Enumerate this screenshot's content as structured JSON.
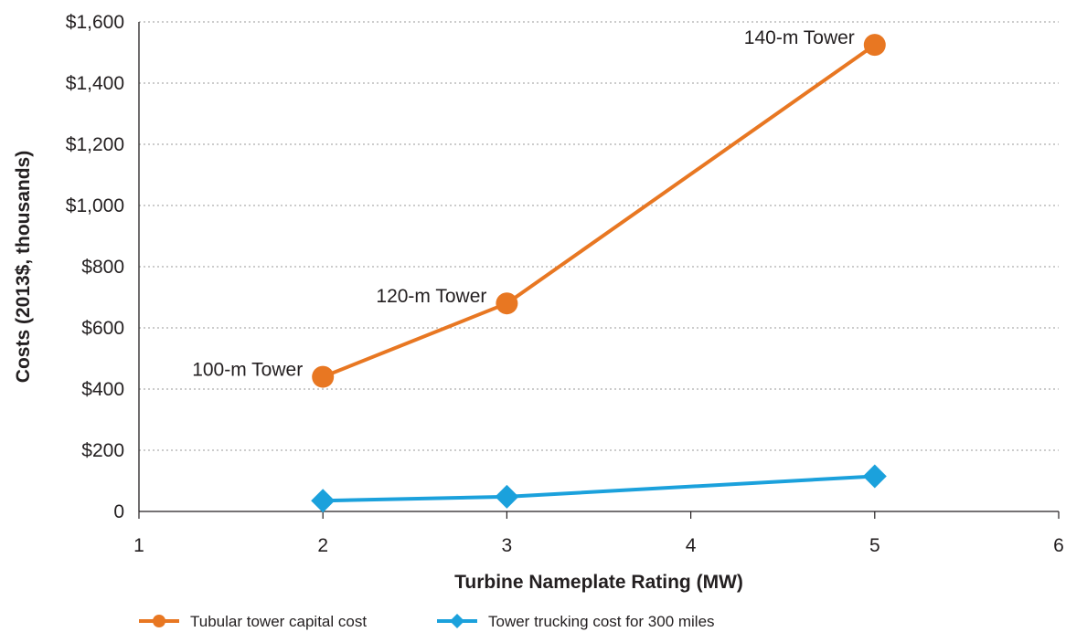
{
  "chart_data": {
    "type": "line",
    "title": "",
    "xlabel": "Turbine Nameplate Rating (MW)",
    "ylabel": "Costs (2013$, thousands)",
    "xlim": [
      1,
      6
    ],
    "ylim": [
      0,
      1600
    ],
    "x_ticks": [
      "1",
      "2",
      "3",
      "4",
      "5",
      "6"
    ],
    "y_ticks": [
      "0",
      "$200",
      "$400",
      "$600",
      "$800",
      "$1,000",
      "$1,200",
      "$1,400",
      "$1,600"
    ],
    "grid": "horizontal-dotted",
    "legend_position": "bottom",
    "series": [
      {
        "name": "Tubular tower capital cost",
        "color": "#e87722",
        "marker": "circle",
        "x": [
          2,
          3,
          5
        ],
        "y": [
          440,
          680,
          1525
        ]
      },
      {
        "name": "Tower trucking cost for 300 miles",
        "color": "#1ba1dc",
        "marker": "diamond",
        "x": [
          2,
          3,
          5
        ],
        "y": [
          35,
          48,
          115
        ]
      }
    ],
    "annotations": [
      {
        "text": "100-m Tower",
        "x": 2,
        "y": 440
      },
      {
        "text": "120-m Tower",
        "x": 3,
        "y": 680
      },
      {
        "text": "140-m Tower",
        "x": 5,
        "y": 1525
      }
    ]
  }
}
